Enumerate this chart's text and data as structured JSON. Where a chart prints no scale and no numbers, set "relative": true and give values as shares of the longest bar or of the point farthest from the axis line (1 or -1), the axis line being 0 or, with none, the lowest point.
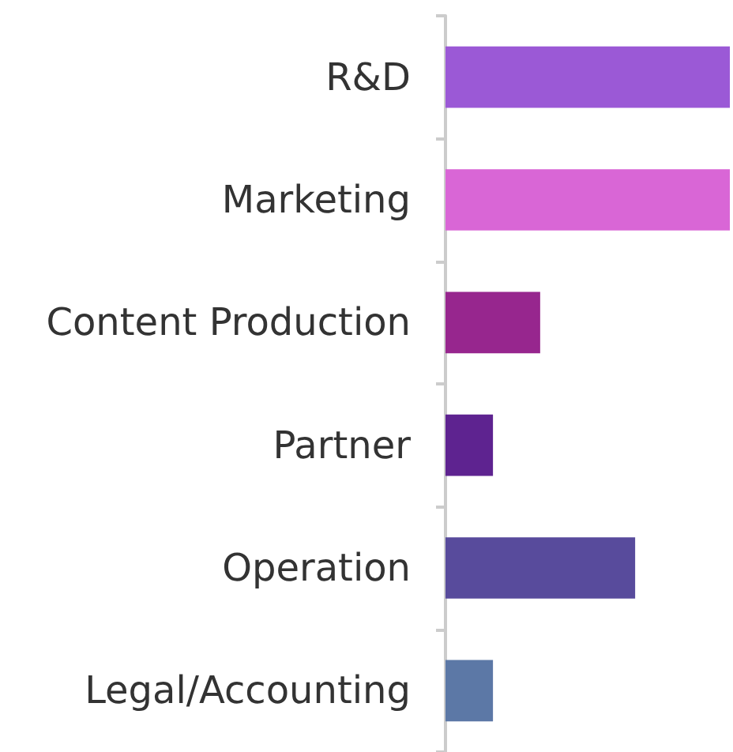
{
  "chart_data": {
    "type": "bar",
    "orientation": "horizontal",
    "relative": true,
    "categories": [
      "R&D",
      "Marketing",
      "Content Production",
      "Partner",
      "Operation",
      "Legal/Accounting"
    ],
    "values": [
      1,
      1,
      0.333,
      0.167,
      0.667,
      0.167
    ],
    "colors": [
      "#9b59d6",
      "#d966d6",
      "#97268e",
      "#5e2390",
      "#584b9c",
      "#5c78a6"
    ]
  }
}
